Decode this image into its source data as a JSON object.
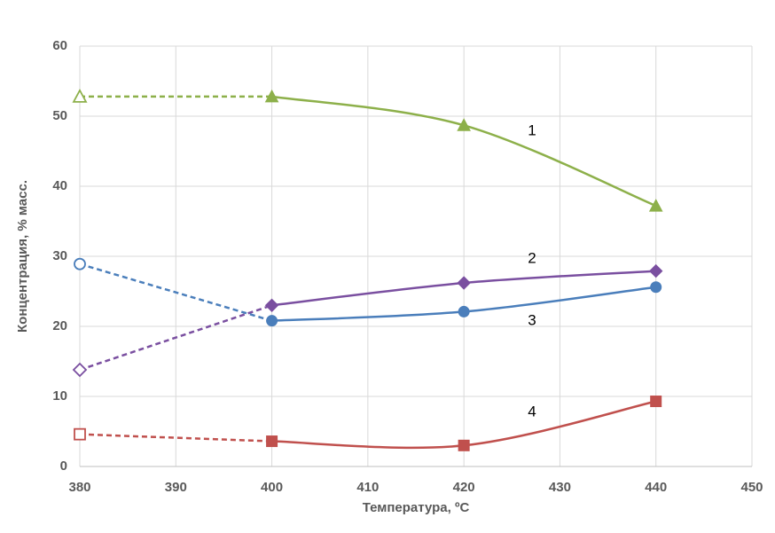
{
  "chart_data": {
    "type": "line",
    "x_label": "Температура, ºС",
    "y_label": "Концентрация, % масс.",
    "x": [
      380,
      400,
      420,
      440
    ],
    "series": [
      {
        "name": "1",
        "color": "#8db04a",
        "marker": "triangle",
        "hollow": [
          true,
          false,
          false,
          false
        ],
        "values": [
          52.8,
          52.8,
          48.7,
          37.2
        ]
      },
      {
        "name": "2",
        "color": "#7a4fa0",
        "marker": "diamond",
        "hollow": [
          true,
          false,
          false,
          false
        ],
        "values": [
          13.8,
          23.0,
          26.2,
          27.9
        ]
      },
      {
        "name": "3",
        "color": "#4a7ebb",
        "marker": "circle",
        "hollow": [
          true,
          false,
          false,
          false
        ],
        "values": [
          28.9,
          20.8,
          22.1,
          25.6
        ]
      },
      {
        "name": "4",
        "color": "#c0504d",
        "marker": "square",
        "hollow": [
          true,
          false,
          false,
          false
        ],
        "values": [
          4.6,
          3.6,
          3.0,
          9.3
        ]
      }
    ],
    "xlim": [
      380,
      450
    ],
    "xticks": [
      380,
      390,
      400,
      410,
      420,
      430,
      440,
      450
    ],
    "ylim": [
      0,
      60
    ],
    "yticks": [
      0,
      10,
      20,
      30,
      40,
      50,
      60
    ],
    "grid": true,
    "smooth": true
  }
}
